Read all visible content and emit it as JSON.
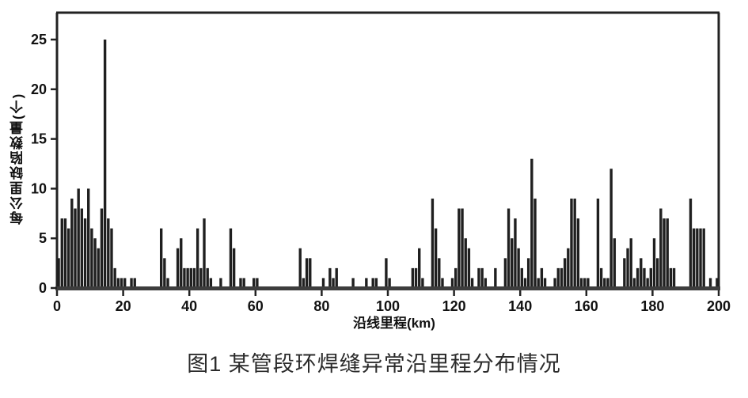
{
  "caption": "图1 某管段环焊缝异常沿里程分布情况",
  "chart_data": {
    "type": "bar",
    "title": "",
    "xlabel": "沿线里程(km)",
    "ylabel": "每公里缺陷数量(个)",
    "xlim": [
      0,
      200
    ],
    "ylim": [
      0,
      27
    ],
    "x_ticks": [
      0,
      20,
      40,
      60,
      80,
      100,
      120,
      140,
      160,
      180,
      200
    ],
    "y_ticks": [
      0,
      5,
      10,
      15,
      20,
      25
    ],
    "grid": "off",
    "legend": "none",
    "bar_color": "#1f1f1f",
    "axis_color": "#222222",
    "baseline_color": "#3d3d3d",
    "bin_width_km": 1,
    "x_start_km": 0,
    "values": [
      3,
      7,
      7,
      6,
      9,
      8,
      10,
      8,
      7,
      10,
      6,
      5,
      4,
      8,
      25,
      7,
      6,
      2,
      1,
      1,
      1,
      0,
      1,
      1,
      0,
      0,
      0,
      0,
      0,
      0,
      0,
      6,
      3,
      1,
      0,
      0,
      4,
      5,
      2,
      2,
      2,
      2,
      6,
      2,
      7,
      2,
      1,
      0,
      0,
      1,
      0,
      0,
      6,
      4,
      0,
      1,
      1,
      0,
      0,
      1,
      1,
      0,
      0,
      0,
      0,
      0,
      0,
      0,
      0,
      0,
      0,
      0,
      0,
      4,
      1,
      3,
      3,
      0,
      0,
      0,
      1,
      0,
      2,
      1,
      2,
      0,
      0,
      0,
      0,
      1,
      0,
      0,
      0,
      1,
      0,
      1,
      1,
      0,
      0,
      3,
      1,
      0,
      0,
      0,
      0,
      0,
      0,
      2,
      2,
      4,
      1,
      0,
      0,
      9,
      6,
      3,
      1,
      0,
      0,
      1,
      2,
      8,
      8,
      5,
      4,
      1,
      0,
      2,
      2,
      1,
      0,
      0,
      2,
      0,
      0,
      3,
      8,
      5,
      7,
      4,
      2,
      1,
      3,
      13,
      9,
      1,
      2,
      1,
      0,
      0,
      1,
      2,
      2,
      3,
      4,
      9,
      9,
      7,
      1,
      1,
      1,
      0,
      0,
      9,
      2,
      1,
      1,
      12,
      5,
      0,
      0,
      3,
      4,
      5,
      1,
      2,
      3,
      2,
      1,
      2,
      5,
      3,
      8,
      7,
      7,
      2,
      2,
      0,
      0,
      0,
      0,
      9,
      6,
      6,
      6,
      6,
      0,
      1,
      0,
      1
    ]
  },
  "layout_note": "defect count per km along a 200 km pipeline section"
}
